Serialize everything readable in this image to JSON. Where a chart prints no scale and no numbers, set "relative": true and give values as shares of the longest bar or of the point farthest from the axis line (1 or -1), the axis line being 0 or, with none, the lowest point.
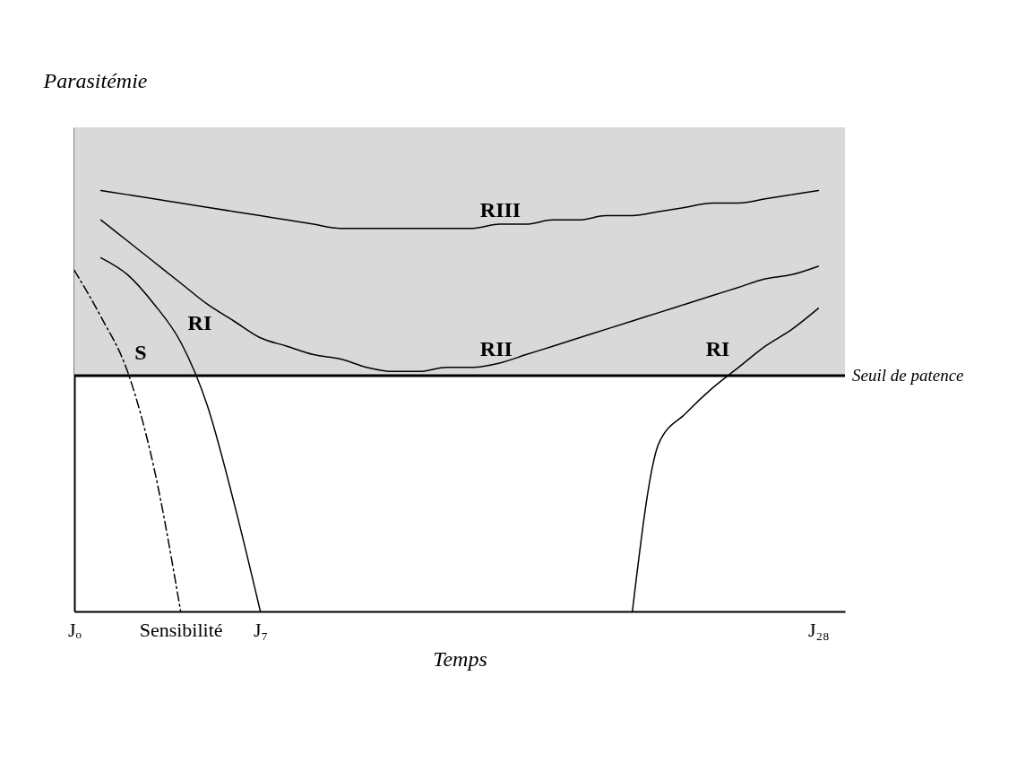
{
  "chart_data": {
    "type": "line",
    "relative": true,
    "xlabel": "Temps",
    "ylabel": "Parasitémie",
    "categories": [
      "Jₒ",
      null,
      null,
      null,
      "Sensibilité",
      null,
      null,
      "J₇",
      null,
      null,
      null,
      null,
      null,
      null,
      null,
      null,
      null,
      null,
      null,
      null,
      null,
      null,
      null,
      null,
      null,
      null,
      null,
      null,
      "J₂₈",
      null
    ],
    "grid": false,
    "series": [
      {
        "name": "RIII",
        "color": "#000000",
        "values": [
          null,
          1,
          0.99,
          0.98,
          0.97,
          0.96,
          0.95,
          0.94,
          0.93,
          0.92,
          0.91,
          0.91,
          0.91,
          0.91,
          0.91,
          0.91,
          0.92,
          0.92,
          0.93,
          0.93,
          0.94,
          0.94,
          0.95,
          0.96,
          0.97,
          0.97,
          0.98,
          0.99,
          1,
          null
        ]
      },
      {
        "name": "RII",
        "color": "#000000",
        "values": [
          null,
          0.93,
          0.88,
          0.83,
          0.78,
          0.73,
          0.69,
          0.65,
          0.63,
          0.61,
          0.6,
          0.58,
          0.57,
          0.57,
          0.58,
          0.58,
          0.59,
          0.61,
          0.63,
          0.65,
          0.67,
          0.69,
          0.71,
          0.73,
          0.75,
          0.77,
          0.79,
          0.8,
          0.82,
          null
        ]
      },
      {
        "name": "RI",
        "color": "#000000",
        "values": [
          null,
          0.84,
          0.8,
          0.73,
          0.64,
          0.49,
          0.26,
          0,
          null,
          null,
          null,
          null,
          null,
          null,
          null,
          null,
          null,
          null,
          null,
          null,
          null,
          null,
          null,
          null,
          null,
          null,
          null,
          null,
          null,
          null
        ]
      },
      {
        "name": "S",
        "color": "#000000",
        "line_style": "dashed",
        "values": [
          0.81,
          0.7,
          0.57,
          0.34,
          0,
          null,
          null,
          null,
          null,
          null,
          null,
          null,
          null,
          null,
          null,
          null,
          null,
          null,
          null,
          null,
          null,
          null,
          null,
          null,
          null,
          null,
          null,
          null,
          null,
          null
        ]
      },
      {
        "name": "RI",
        "color": "#000000",
        "values": [
          null,
          null,
          null,
          null,
          null,
          null,
          null,
          null,
          null,
          null,
          null,
          null,
          null,
          null,
          null,
          null,
          null,
          null,
          null,
          null,
          null,
          0,
          0.4,
          0.47,
          0.53,
          0.58,
          0.63,
          0.67,
          0.72,
          null
        ]
      }
    ],
    "bands": [
      {
        "axis": "y",
        "from": 0.56,
        "to": 1.15,
        "color": "#d9d9d9"
      }
    ],
    "ref_lines": [
      {
        "axis": "y",
        "value": 0.56,
        "label": "Seuil de patence",
        "color": "#000000"
      }
    ]
  }
}
